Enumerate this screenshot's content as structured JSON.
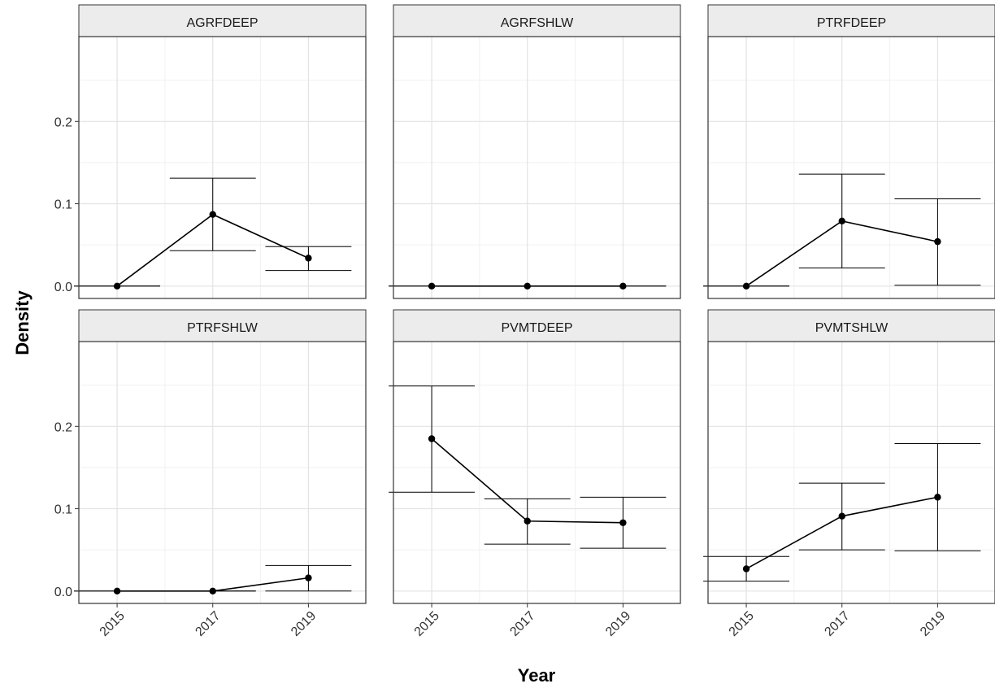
{
  "chart_data": {
    "type": "line",
    "layout": "facet-grid-2x3",
    "xlabel": "Year",
    "ylabel": "Density",
    "x_ticks": [
      2015,
      2017,
      2019
    ],
    "xlim": [
      2014.2,
      2020.2
    ],
    "y_ticks": [
      0.0,
      0.1,
      0.2
    ],
    "ylim": [
      -0.015,
      0.303
    ],
    "grid": true,
    "panels": [
      {
        "title": "AGRFDEEP",
        "x": [
          2015,
          2017,
          2019
        ],
        "y": [
          0.0,
          0.087,
          0.034
        ],
        "lower": [
          0.0,
          0.043,
          0.019
        ],
        "upper": [
          0.0,
          0.131,
          0.048
        ]
      },
      {
        "title": "AGRFSHLW",
        "x": [
          2015,
          2017,
          2019
        ],
        "y": [
          0.0,
          0.0,
          0.0
        ],
        "lower": [
          0.0,
          0.0,
          0.0
        ],
        "upper": [
          0.0,
          0.0,
          0.0
        ]
      },
      {
        "title": "PTRFDEEP",
        "x": [
          2015,
          2017,
          2019
        ],
        "y": [
          0.0,
          0.079,
          0.054
        ],
        "lower": [
          0.0,
          0.022,
          0.001
        ],
        "upper": [
          0.0,
          0.136,
          0.106
        ]
      },
      {
        "title": "PTRFSHLW",
        "x": [
          2015,
          2017,
          2019
        ],
        "y": [
          0.0,
          0.0,
          0.016
        ],
        "lower": [
          0.0,
          0.0,
          0.0
        ],
        "upper": [
          0.0,
          0.0,
          0.031
        ]
      },
      {
        "title": "PVMTDEEP",
        "x": [
          2015,
          2017,
          2019
        ],
        "y": [
          0.185,
          0.085,
          0.083
        ],
        "lower": [
          0.12,
          0.057,
          0.052
        ],
        "upper": [
          0.249,
          0.112,
          0.114
        ]
      },
      {
        "title": "PVMTSHLW",
        "x": [
          2015,
          2017,
          2019
        ],
        "y": [
          0.027,
          0.091,
          0.114
        ],
        "lower": [
          0.012,
          0.05,
          0.049
        ],
        "upper": [
          0.042,
          0.131,
          0.179
        ]
      }
    ]
  }
}
